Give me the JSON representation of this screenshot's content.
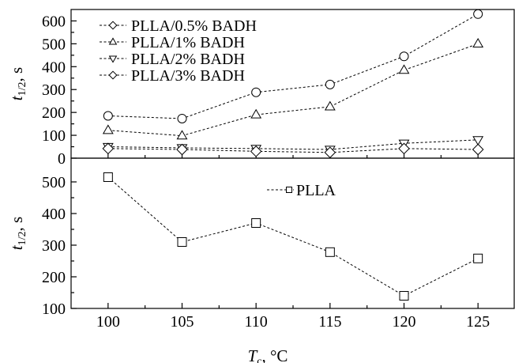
{
  "chart_data": [
    {
      "type": "line",
      "x": [
        100,
        105,
        110,
        115,
        120,
        125
      ],
      "xlim": [
        97.5,
        127.5
      ],
      "ylim": [
        0,
        650
      ],
      "yticks": [
        0,
        100,
        200,
        300,
        400,
        500,
        600
      ],
      "ylabel": {
        "main": "t",
        "sub": "1/2",
        "unit": ", s"
      },
      "legend_position": "top-left",
      "series": [
        {
          "name": "PLLA/0.5% BADH",
          "marker": "circle",
          "legend_marker": "diamond",
          "values": [
            185,
            173,
            288,
            322,
            445,
            630
          ]
        },
        {
          "name": "PLLA/1% BADH",
          "marker": "triangle-up",
          "legend_marker": "triangle-up",
          "values": [
            122,
            98,
            190,
            225,
            385,
            500
          ]
        },
        {
          "name": "PLLA/2% BADH",
          "marker": "triangle-down",
          "legend_marker": "triangle-down",
          "values": [
            50,
            45,
            42,
            38,
            65,
            80
          ]
        },
        {
          "name": "PLLA/3% BADH",
          "marker": "diamond",
          "legend_marker": "diamond",
          "values": [
            42,
            38,
            30,
            25,
            42,
            38
          ]
        }
      ]
    },
    {
      "type": "line",
      "x": [
        100,
        105,
        110,
        115,
        120,
        125
      ],
      "xlim": [
        97.5,
        127.5
      ],
      "ylim": [
        100,
        575
      ],
      "yticks": [
        100,
        200,
        300,
        400,
        500
      ],
      "ylabel": {
        "main": "t",
        "sub": "1/2",
        "unit": ", s"
      },
      "xlabel": {
        "main": "T",
        "sub": "c",
        "unit": ", °C"
      },
      "xticks": [
        100,
        105,
        110,
        115,
        120,
        125
      ],
      "legend_position": "top-center",
      "series": [
        {
          "name": "PLLA",
          "marker": "square",
          "legend_marker": "square",
          "values": [
            515,
            310,
            370,
            278,
            140,
            258
          ]
        }
      ]
    }
  ]
}
